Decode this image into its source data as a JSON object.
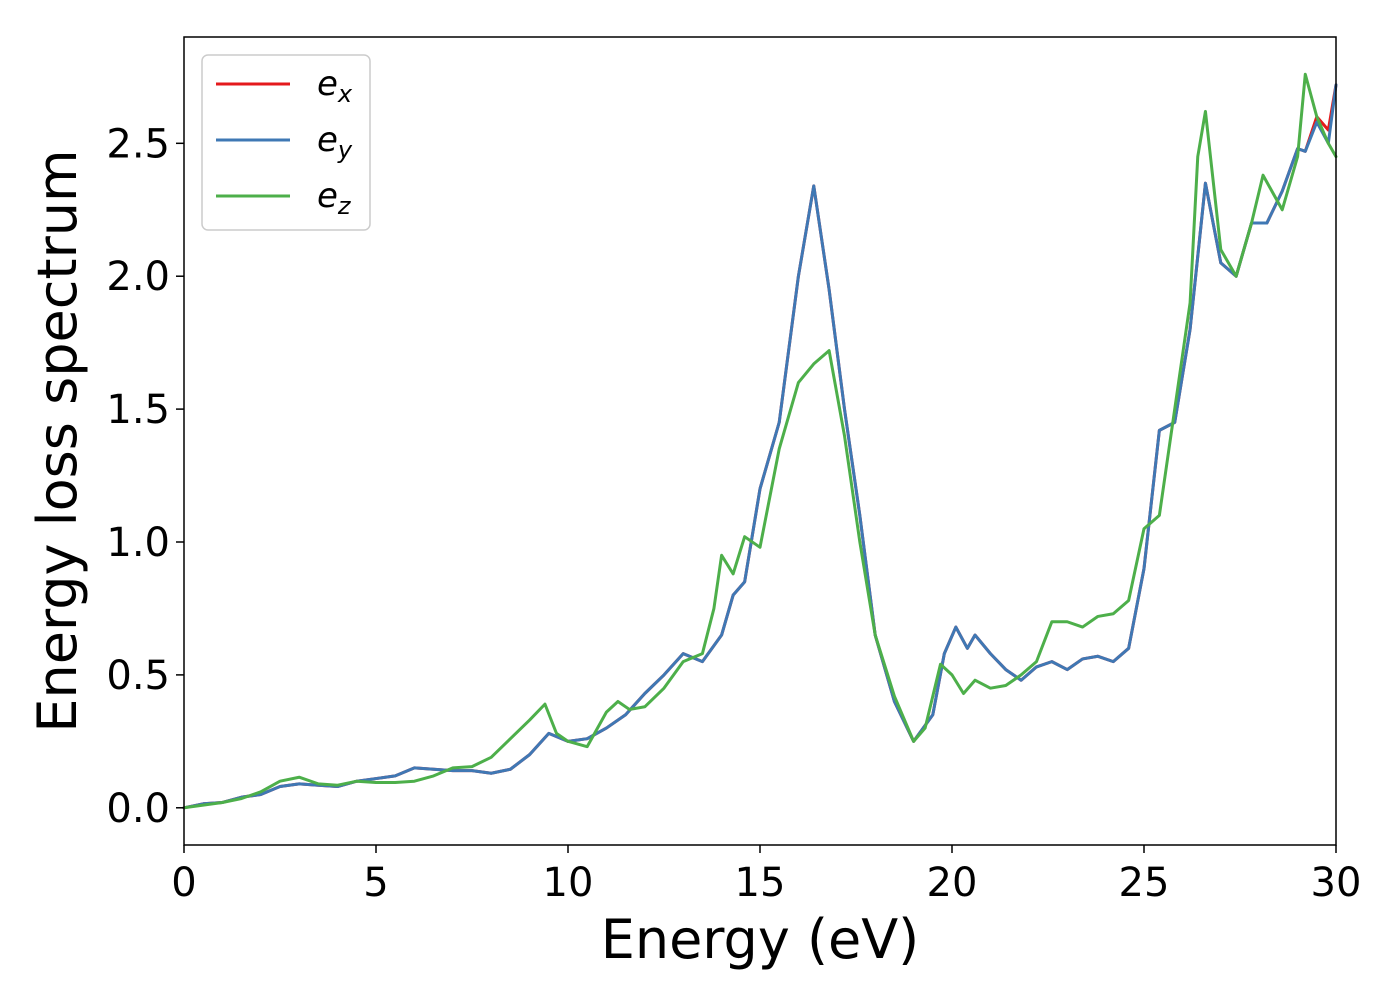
{
  "chart_data": {
    "type": "line",
    "xlabel": "Energy (eV)",
    "ylabel": "Energy loss spectrum",
    "xlim": [
      0,
      30
    ],
    "ylim": [
      -0.14,
      2.9
    ],
    "xticks": [
      0,
      5,
      10,
      15,
      20,
      25,
      30
    ],
    "xtick_labels": [
      "0",
      "5",
      "10",
      "15",
      "20",
      "25",
      "30"
    ],
    "yticks": [
      0.0,
      0.5,
      1.0,
      1.5,
      2.0,
      2.5
    ],
    "ytick_labels": [
      "0.0",
      "0.5",
      "1.0",
      "1.5",
      "2.0",
      "2.5"
    ],
    "grid": false,
    "legend_position": "top-left",
    "series": [
      {
        "name": "e",
        "subscript": "x",
        "color": "#e41a1c",
        "points": [
          [
            0,
            0
          ],
          [
            0.5,
            0.015
          ],
          [
            1,
            0.02
          ],
          [
            1.5,
            0.04
          ],
          [
            2,
            0.05
          ],
          [
            2.5,
            0.08
          ],
          [
            3,
            0.09
          ],
          [
            3.5,
            0.085
          ],
          [
            4,
            0.08
          ],
          [
            4.5,
            0.1
          ],
          [
            5,
            0.11
          ],
          [
            5.5,
            0.12
          ],
          [
            6,
            0.15
          ],
          [
            6.5,
            0.145
          ],
          [
            7,
            0.14
          ],
          [
            7.5,
            0.14
          ],
          [
            8,
            0.13
          ],
          [
            8.5,
            0.145
          ],
          [
            9,
            0.2
          ],
          [
            9.5,
            0.28
          ],
          [
            10,
            0.25
          ],
          [
            10.5,
            0.26
          ],
          [
            11,
            0.3
          ],
          [
            11.5,
            0.35
          ],
          [
            12,
            0.43
          ],
          [
            12.5,
            0.5
          ],
          [
            13,
            0.58
          ],
          [
            13.5,
            0.55
          ],
          [
            14,
            0.65
          ],
          [
            14.3,
            0.8
          ],
          [
            14.6,
            0.85
          ],
          [
            15,
            1.2
          ],
          [
            15.5,
            1.45
          ],
          [
            16,
            2.0
          ],
          [
            16.4,
            2.34
          ],
          [
            16.8,
            1.95
          ],
          [
            17.2,
            1.5
          ],
          [
            17.6,
            1.1
          ],
          [
            18,
            0.65
          ],
          [
            18.5,
            0.4
          ],
          [
            19,
            0.25
          ],
          [
            19.5,
            0.35
          ],
          [
            19.8,
            0.58
          ],
          [
            20.1,
            0.68
          ],
          [
            20.4,
            0.6
          ],
          [
            20.6,
            0.65
          ],
          [
            21,
            0.58
          ],
          [
            21.4,
            0.52
          ],
          [
            21.8,
            0.48
          ],
          [
            22.2,
            0.53
          ],
          [
            22.6,
            0.55
          ],
          [
            23,
            0.52
          ],
          [
            23.4,
            0.56
          ],
          [
            23.8,
            0.57
          ],
          [
            24.2,
            0.55
          ],
          [
            24.6,
            0.6
          ],
          [
            25,
            0.9
          ],
          [
            25.4,
            1.42
          ],
          [
            25.8,
            1.45
          ],
          [
            26.2,
            1.8
          ],
          [
            26.6,
            2.35
          ],
          [
            27,
            2.05
          ],
          [
            27.4,
            2.0
          ],
          [
            27.8,
            2.2
          ],
          [
            28.2,
            2.2
          ],
          [
            28.6,
            2.32
          ],
          [
            29,
            2.48
          ],
          [
            29.2,
            2.47
          ],
          [
            29.5,
            2.6
          ],
          [
            29.8,
            2.55
          ],
          [
            30,
            2.72
          ]
        ]
      },
      {
        "name": "e",
        "subscript": "y",
        "color": "#3f78b4",
        "points": [
          [
            0,
            0
          ],
          [
            0.5,
            0.015
          ],
          [
            1,
            0.02
          ],
          [
            1.5,
            0.04
          ],
          [
            2,
            0.05
          ],
          [
            2.5,
            0.08
          ],
          [
            3,
            0.09
          ],
          [
            3.5,
            0.085
          ],
          [
            4,
            0.08
          ],
          [
            4.5,
            0.1
          ],
          [
            5,
            0.11
          ],
          [
            5.5,
            0.12
          ],
          [
            6,
            0.15
          ],
          [
            6.5,
            0.145
          ],
          [
            7,
            0.14
          ],
          [
            7.5,
            0.14
          ],
          [
            8,
            0.13
          ],
          [
            8.5,
            0.145
          ],
          [
            9,
            0.2
          ],
          [
            9.5,
            0.28
          ],
          [
            10,
            0.25
          ],
          [
            10.5,
            0.26
          ],
          [
            11,
            0.3
          ],
          [
            11.5,
            0.35
          ],
          [
            12,
            0.43
          ],
          [
            12.5,
            0.5
          ],
          [
            13,
            0.58
          ],
          [
            13.5,
            0.55
          ],
          [
            14,
            0.65
          ],
          [
            14.3,
            0.8
          ],
          [
            14.6,
            0.85
          ],
          [
            15,
            1.2
          ],
          [
            15.5,
            1.45
          ],
          [
            16,
            2.0
          ],
          [
            16.4,
            2.34
          ],
          [
            16.8,
            1.95
          ],
          [
            17.2,
            1.5
          ],
          [
            17.6,
            1.1
          ],
          [
            18,
            0.65
          ],
          [
            18.5,
            0.4
          ],
          [
            19,
            0.25
          ],
          [
            19.5,
            0.35
          ],
          [
            19.8,
            0.58
          ],
          [
            20.1,
            0.68
          ],
          [
            20.4,
            0.6
          ],
          [
            20.6,
            0.65
          ],
          [
            21,
            0.58
          ],
          [
            21.4,
            0.52
          ],
          [
            21.8,
            0.48
          ],
          [
            22.2,
            0.53
          ],
          [
            22.6,
            0.55
          ],
          [
            23,
            0.52
          ],
          [
            23.4,
            0.56
          ],
          [
            23.8,
            0.57
          ],
          [
            24.2,
            0.55
          ],
          [
            24.6,
            0.6
          ],
          [
            25,
            0.9
          ],
          [
            25.4,
            1.42
          ],
          [
            25.8,
            1.45
          ],
          [
            26.2,
            1.8
          ],
          [
            26.6,
            2.35
          ],
          [
            27,
            2.05
          ],
          [
            27.4,
            2.0
          ],
          [
            27.8,
            2.2
          ],
          [
            28.2,
            2.2
          ],
          [
            28.6,
            2.32
          ],
          [
            29,
            2.48
          ],
          [
            29.2,
            2.47
          ],
          [
            29.5,
            2.58
          ],
          [
            29.8,
            2.5
          ],
          [
            30,
            2.72
          ]
        ]
      },
      {
        "name": "e",
        "subscript": "z",
        "color": "#4daf4a",
        "points": [
          [
            0,
            0
          ],
          [
            0.5,
            0.01
          ],
          [
            1,
            0.02
          ],
          [
            1.5,
            0.035
          ],
          [
            2,
            0.06
          ],
          [
            2.5,
            0.1
          ],
          [
            3,
            0.115
          ],
          [
            3.5,
            0.09
          ],
          [
            4,
            0.085
          ],
          [
            4.5,
            0.1
          ],
          [
            5,
            0.095
          ],
          [
            5.5,
            0.095
          ],
          [
            6,
            0.1
          ],
          [
            6.5,
            0.12
          ],
          [
            7,
            0.15
          ],
          [
            7.5,
            0.155
          ],
          [
            8,
            0.19
          ],
          [
            8.5,
            0.26
          ],
          [
            9,
            0.33
          ],
          [
            9.4,
            0.39
          ],
          [
            9.7,
            0.28
          ],
          [
            10,
            0.25
          ],
          [
            10.5,
            0.23
          ],
          [
            11,
            0.36
          ],
          [
            11.3,
            0.4
          ],
          [
            11.6,
            0.37
          ],
          [
            12,
            0.38
          ],
          [
            12.5,
            0.45
          ],
          [
            13,
            0.55
          ],
          [
            13.5,
            0.58
          ],
          [
            13.8,
            0.75
          ],
          [
            14,
            0.95
          ],
          [
            14.3,
            0.88
          ],
          [
            14.6,
            1.02
          ],
          [
            15,
            0.98
          ],
          [
            15.5,
            1.35
          ],
          [
            16,
            1.6
          ],
          [
            16.4,
            1.67
          ],
          [
            16.8,
            1.72
          ],
          [
            17.2,
            1.4
          ],
          [
            17.6,
            1.0
          ],
          [
            18,
            0.65
          ],
          [
            18.5,
            0.42
          ],
          [
            19,
            0.25
          ],
          [
            19.3,
            0.3
          ],
          [
            19.7,
            0.54
          ],
          [
            20,
            0.5
          ],
          [
            20.3,
            0.43
          ],
          [
            20.6,
            0.48
          ],
          [
            21,
            0.45
          ],
          [
            21.4,
            0.46
          ],
          [
            21.8,
            0.5
          ],
          [
            22.2,
            0.55
          ],
          [
            22.6,
            0.7
          ],
          [
            23,
            0.7
          ],
          [
            23.4,
            0.68
          ],
          [
            23.8,
            0.72
          ],
          [
            24.2,
            0.73
          ],
          [
            24.6,
            0.78
          ],
          [
            25,
            1.05
          ],
          [
            25.4,
            1.1
          ],
          [
            25.8,
            1.5
          ],
          [
            26.2,
            1.9
          ],
          [
            26.4,
            2.45
          ],
          [
            26.6,
            2.62
          ],
          [
            27,
            2.1
          ],
          [
            27.4,
            2.0
          ],
          [
            27.8,
            2.2
          ],
          [
            28.1,
            2.38
          ],
          [
            28.6,
            2.25
          ],
          [
            29,
            2.45
          ],
          [
            29.2,
            2.76
          ],
          [
            29.5,
            2.6
          ],
          [
            29.8,
            2.5
          ],
          [
            30,
            2.45
          ]
        ]
      }
    ]
  }
}
